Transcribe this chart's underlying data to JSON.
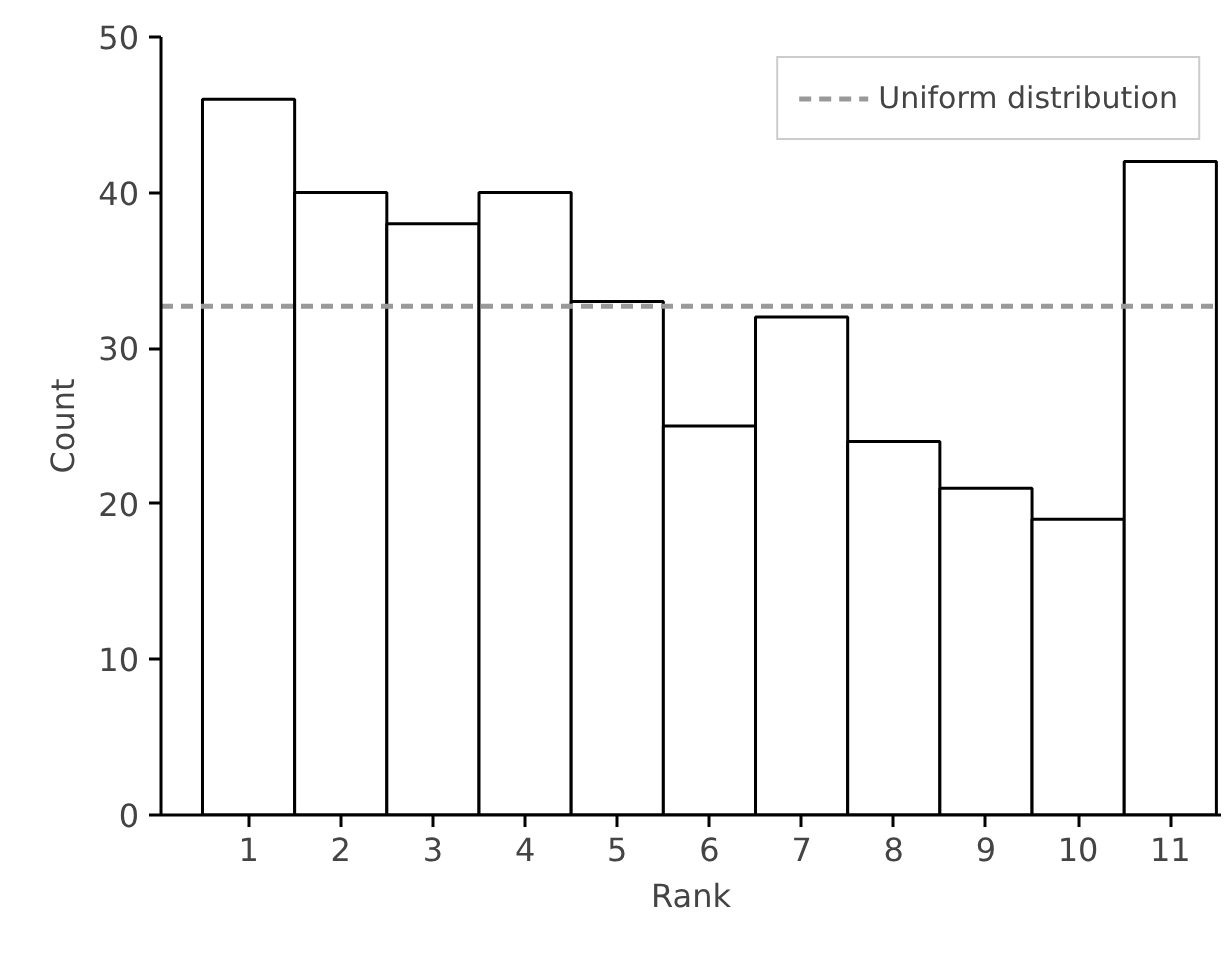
{
  "chart_data": {
    "type": "bar",
    "xlabel": "Rank",
    "ylabel": "Count",
    "categories": [
      "1",
      "2",
      "3",
      "4",
      "5",
      "6",
      "7",
      "8",
      "9",
      "10",
      "11"
    ],
    "values": [
      46,
      40,
      38,
      40,
      33,
      25,
      32,
      24,
      21,
      19,
      42
    ],
    "color": "#ffffff",
    "ylim": [
      0,
      50
    ],
    "yticks": [
      0,
      10,
      20,
      30,
      40,
      50
    ],
    "ref_lines": [
      {
        "axis": "y",
        "value": 32.7,
        "label": "Uniform distribution",
        "color": "#999999",
        "line_style": "dashed"
      }
    ],
    "grid": false,
    "legend": "top right"
  }
}
